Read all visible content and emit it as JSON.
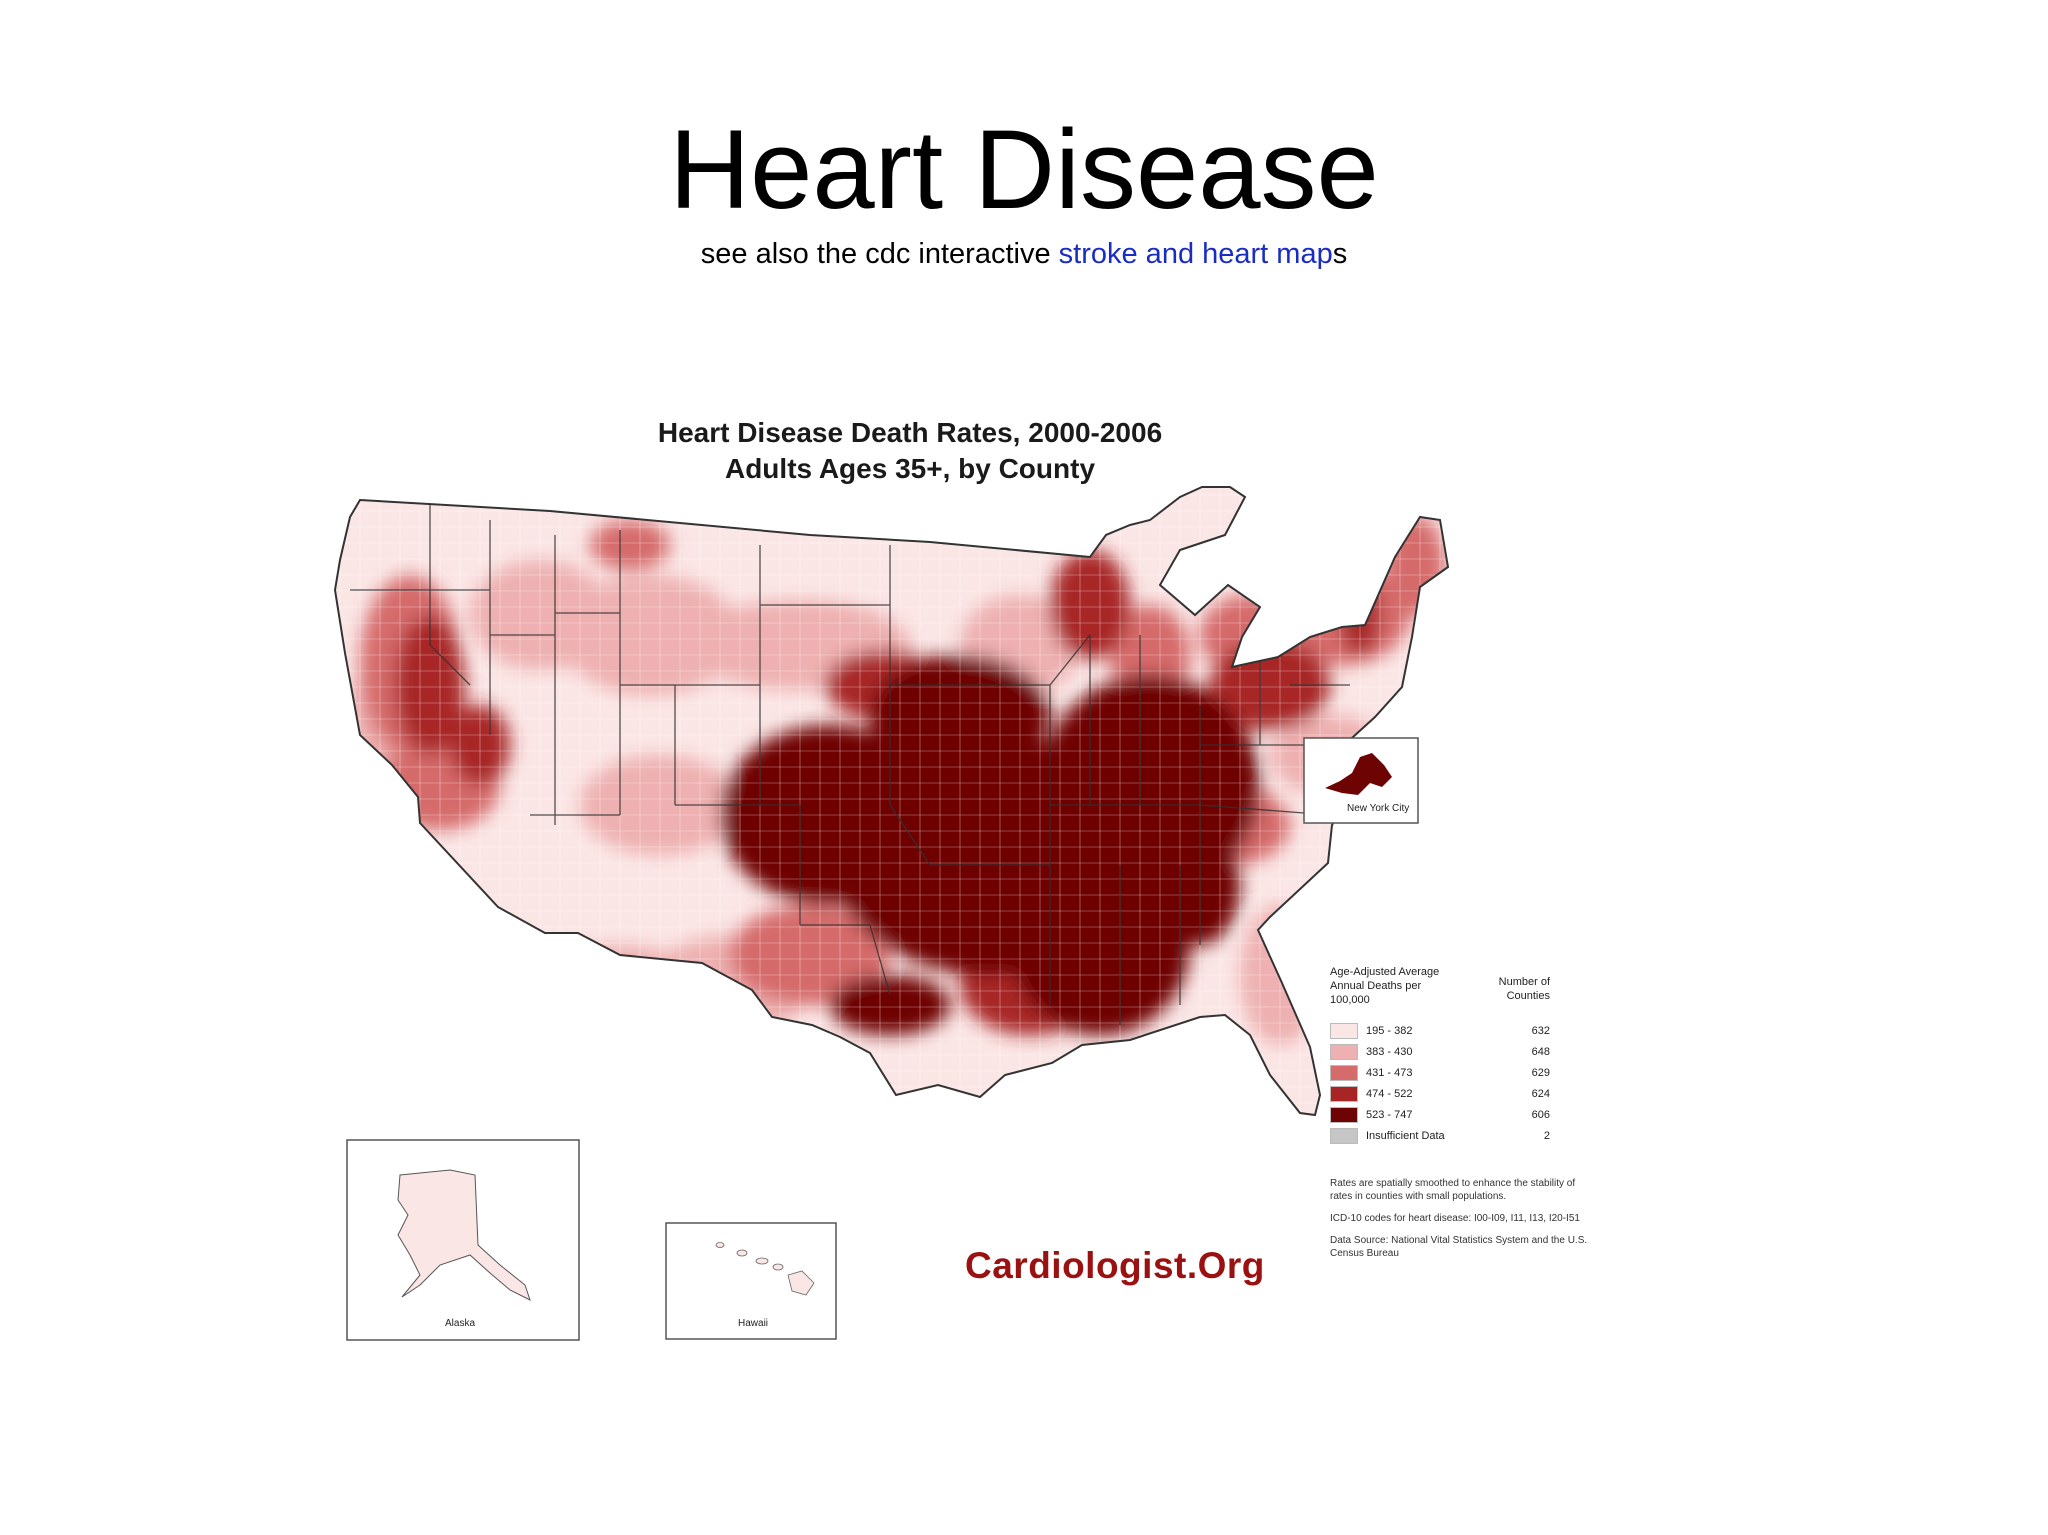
{
  "slide": {
    "title": "Heart Disease",
    "subtitle_prefix": "see also the cdc interactive ",
    "subtitle_link": "stroke and heart map",
    "subtitle_suffix": "s"
  },
  "map": {
    "title_line1": "Heart Disease Death Rates, 2000-2006",
    "title_line2": "Adults Ages 35+, by County",
    "inset_labels": {
      "new_york_city": "New York City",
      "alaska": "Alaska",
      "hawaii": "Hawaii"
    },
    "brand": "Cardiologist.Org",
    "legend": {
      "title": "Age-Adjusted Average Annual Deaths per 100,000",
      "count_header": "Number of Counties",
      "classes": [
        {
          "range": "195 - 382",
          "count": "632",
          "color": "#fbe6e6"
        },
        {
          "range": "383 - 430",
          "count": "648",
          "color": "#eeb0b0"
        },
        {
          "range": "431 - 473",
          "count": "629",
          "color": "#d56b6b"
        },
        {
          "range": "474 - 522",
          "count": "624",
          "color": "#a82525"
        },
        {
          "range": "523 - 747",
          "count": "606",
          "color": "#6e0303"
        },
        {
          "range": "Insufficient Data",
          "count": "2",
          "color": "#c6c6c6"
        }
      ]
    },
    "notes": [
      "Rates are spatially smoothed to enhance the stability of rates in counties with small populations.",
      "ICD-10 codes for heart disease: I00-I09, I11, I13, I20-I51",
      "Data Source: National Vital Statistics System and the U.S. Census Bureau"
    ]
  }
}
